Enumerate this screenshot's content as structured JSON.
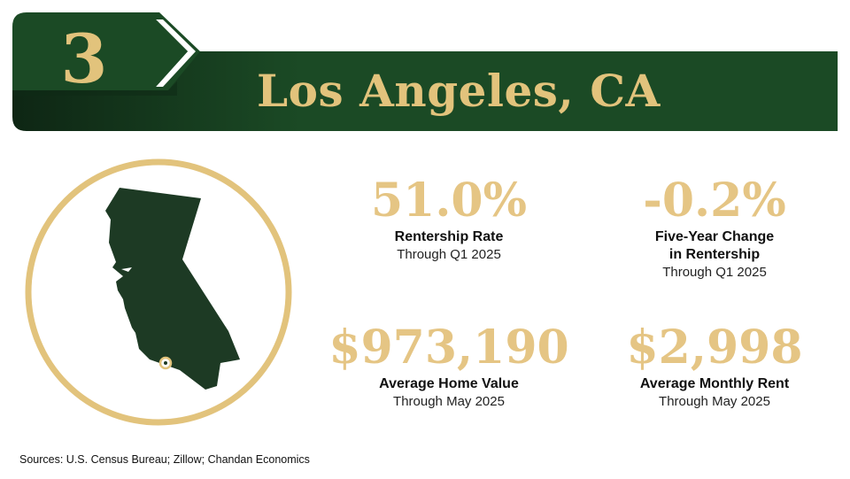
{
  "header": {
    "rank": "3",
    "city": "Los Angeles, CA"
  },
  "map": {
    "state_icon": "california-map-icon",
    "marker_icon": "location-marker-icon"
  },
  "stats": [
    {
      "value": "51.0%",
      "label": "Rentership Rate",
      "sub": "Through Q1 2025"
    },
    {
      "value": "-0.2%",
      "label_line1": "Five-Year Change",
      "label_line2": "in Rentership",
      "sub": "Through Q1 2025"
    },
    {
      "value": "$973,190",
      "label": "Average Home Value",
      "sub": "Through May 2025"
    },
    {
      "value": "$2,998",
      "label": "Average Monthly Rent",
      "sub": "Through May 2025"
    }
  ],
  "sources": "Sources: U.S. Census Bureau; Zillow; Chandan Economics",
  "colors": {
    "dark_green": "#1b4a25",
    "gold": "#e2c37c",
    "state_fill": "#1d3a24"
  }
}
